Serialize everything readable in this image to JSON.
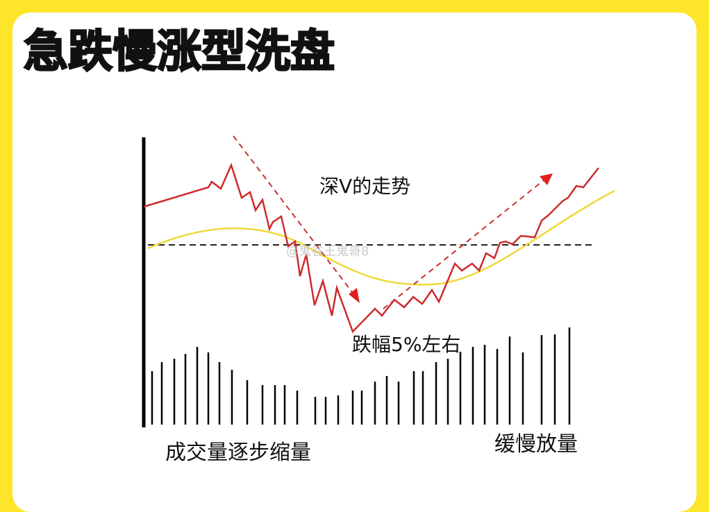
{
  "title": "急跌慢涨型洗盘",
  "annotations": {
    "trend": "深V的走势",
    "drop": "跌幅5%左右",
    "volume_shrink": "成交量逐步缩量",
    "volume_grow": "缓慢放量"
  },
  "watermark": "@鬼谷王鬼哥8"
}
